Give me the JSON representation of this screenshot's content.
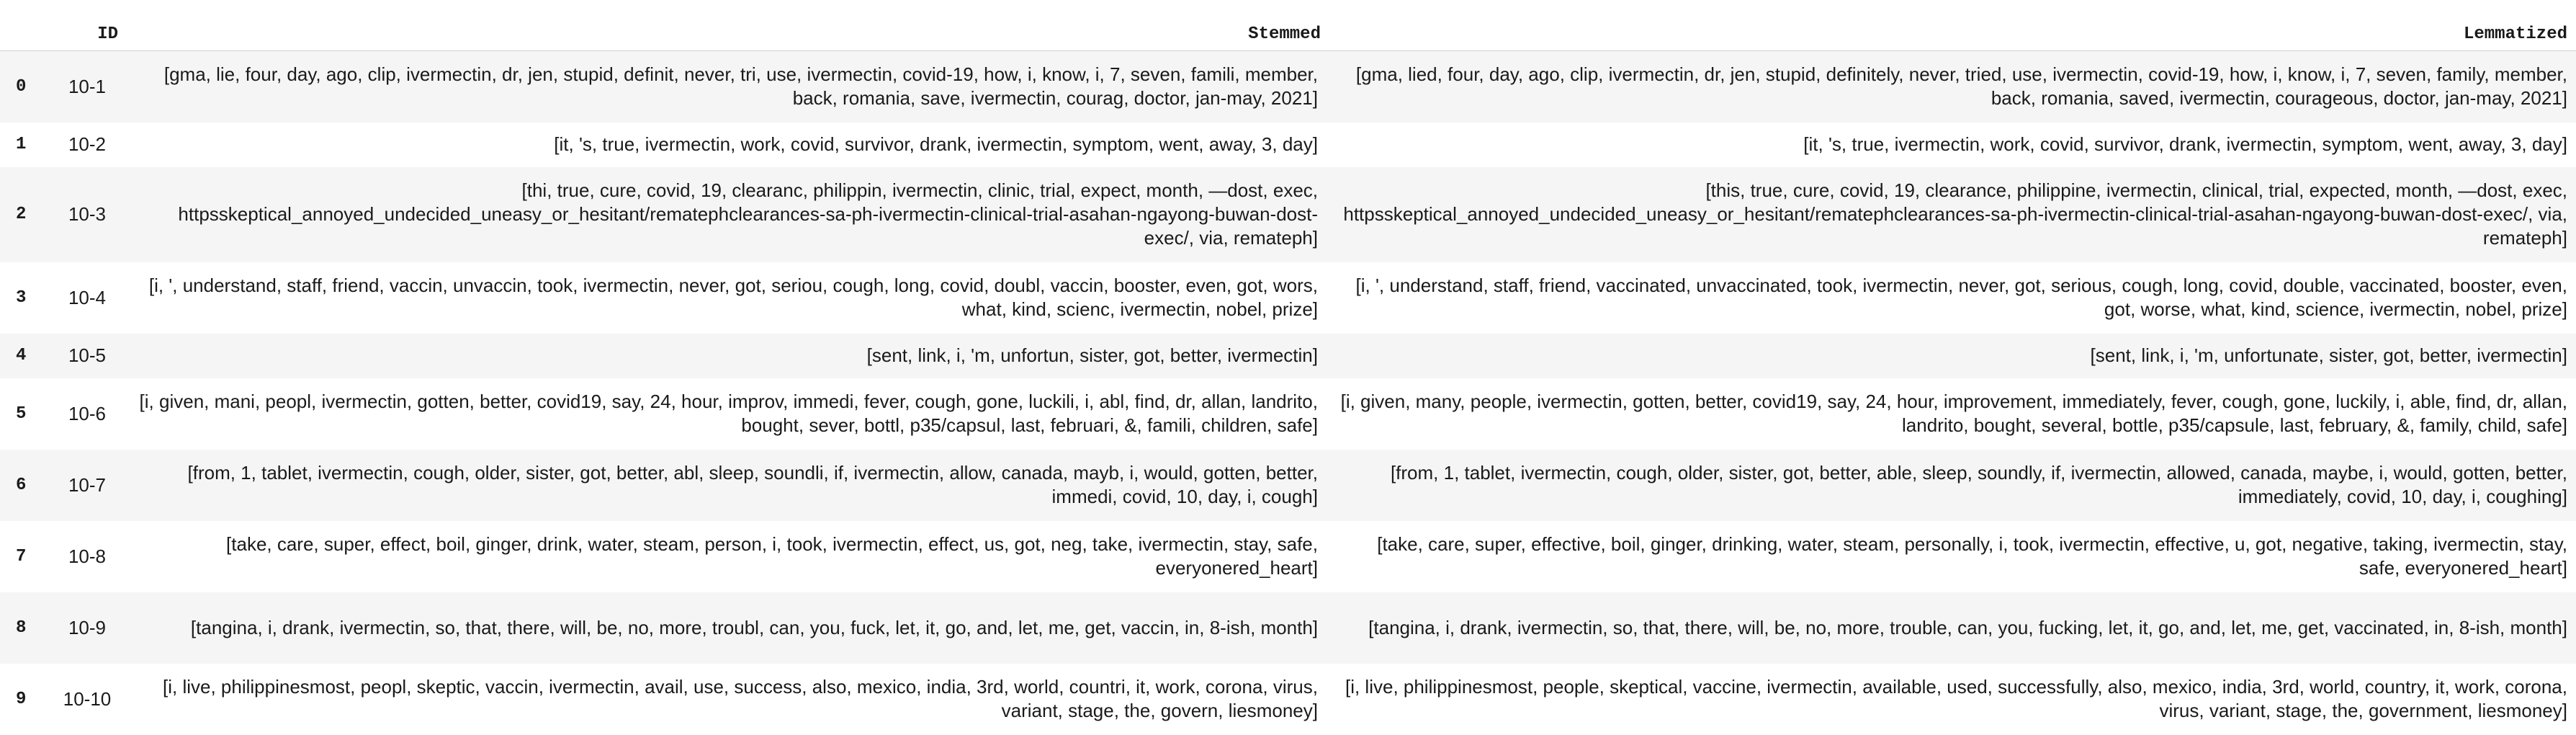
{
  "table": {
    "columns": {
      "index": "",
      "id": "ID",
      "stemmed": "Stemmed",
      "lemmatized": "Lemmatized"
    },
    "rows": [
      {
        "index": "0",
        "id": "10-1",
        "stemmed": "[gma, lie, four, day, ago, clip, ivermectin, dr, jen, stupid, definit, never, tri, use, ivermectin, covid-19, how, i, know, i, 7, seven, famili, member, back, romania, save, ivermectin, courag, doctor, jan-may, 2021]",
        "lemmatized": "[gma, lied, four, day, ago, clip, ivermectin, dr, jen, stupid, definitely, never, tried, use, ivermectin, covid-19, how, i, know, i, 7, seven, family, member, back, romania, saved, ivermectin, courageous, doctor, jan-may, 2021]"
      },
      {
        "index": "1",
        "id": "10-2",
        "stemmed": "[it, 's, true, ivermectin, work, covid, survivor, drank, ivermectin, symptom, went, away, 3, day]",
        "lemmatized": "[it, 's, true, ivermectin, work, covid, survivor, drank, ivermectin, symptom, went, away, 3, day]"
      },
      {
        "index": "2",
        "id": "10-3",
        "stemmed": "[thi, true, cure, covid, 19, clearanc, philippin, ivermectin, clinic, trial, expect, month, —dost, exec, httpsskeptical_annoyed_undecided_uneasy_or_hesitant/rematephclearances-sa-ph-ivermectin-clinical-trial-asahan-ngayong-buwan-dost-exec/, via, remateph]",
        "lemmatized": "[this, true, cure, covid, 19, clearance, philippine, ivermectin, clinical, trial, expected, month, —dost, exec, httpsskeptical_annoyed_undecided_uneasy_or_hesitant/rematephclearances-sa-ph-ivermectin-clinical-trial-asahan-ngayong-buwan-dost-exec/, via, remateph]"
      },
      {
        "index": "3",
        "id": "10-4",
        "stemmed": "[i, ', understand, staff, friend, vaccin, unvaccin, took, ivermectin, never, got, seriou, cough, long, covid, doubl, vaccin, booster, even, got, wors, what, kind, scienc, ivermectin, nobel, prize]",
        "lemmatized": "[i, ', understand, staff, friend, vaccinated, unvaccinated, took, ivermectin, never, got, serious, cough, long, covid, double, vaccinated, booster, even, got, worse, what, kind, science, ivermectin, nobel, prize]"
      },
      {
        "index": "4",
        "id": "10-5",
        "stemmed": "[sent, link, i, 'm, unfortun, sister, got, better, ivermectin]",
        "lemmatized": "[sent, link, i, 'm, unfortunate, sister, got, better, ivermectin]"
      },
      {
        "index": "5",
        "id": "10-6",
        "stemmed": "[i, given, mani, peopl, ivermectin, gotten, better, covid19, say, 24, hour, improv, immedi, fever, cough, gone, luckili, i, abl, find, dr, allan, landrito, bought, sever, bottl, p35/capsul, last, februari, &, famili, children, safe]",
        "lemmatized": "[i, given, many, people, ivermectin, gotten, better, covid19, say, 24, hour, improvement, immediately, fever, cough, gone, luckily, i, able, find, dr, allan, landrito, bought, several, bottle, p35/capsule, last, february, &, family, child, safe]"
      },
      {
        "index": "6",
        "id": "10-7",
        "stemmed": "[from, 1, tablet, ivermectin, cough, older, sister, got, better, abl, sleep, soundli, if, ivermectin, allow, canada, mayb, i, would, gotten, better, immedi, covid, 10, day, i, cough]",
        "lemmatized": "[from, 1, tablet, ivermectin, cough, older, sister, got, better, able, sleep, soundly, if, ivermectin, allowed, canada, maybe, i, would, gotten, better, immediately, covid, 10, day, i, coughing]"
      },
      {
        "index": "7",
        "id": "10-8",
        "stemmed": "[take, care, super, effect, boil, ginger, drink, water, steam, person, i, took, ivermectin, effect, us, got, neg, take, ivermectin, stay, safe, everyonered_heart]",
        "lemmatized": "[take, care, super, effective, boil, ginger, drinking, water, steam, personally, i, took, ivermectin, effective, u, got, negative, taking, ivermectin, stay, safe, everyonered_heart]"
      },
      {
        "index": "8",
        "id": "10-9",
        "stemmed": "[tangina, i, drank, ivermectin, so, that, there, will, be, no, more, troubl, can, you, fuck, let, it, go, and, let, me, get, vaccin, in, 8-ish, month]",
        "lemmatized": "[tangina, i, drank, ivermectin, so, that, there, will, be, no, more, trouble, can, you, fucking, let, it, go, and, let, me, get, vaccinated, in, 8-ish, month]"
      },
      {
        "index": "9",
        "id": "10-10",
        "stemmed": "[i, live, philippinesmost, peopl, skeptic, vaccin, ivermectin, avail, use, success, also, mexico, india, 3rd, world, countri, it, work, corona, virus, variant, stage, the, govern, liesmoney]",
        "lemmatized": "[i, live, philippinesmost, people, skeptical, vaccine, ivermectin, available, used, successfully, also, mexico, india, 3rd, world, country, it, work, corona, virus, variant, stage, the, government, liesmoney]"
      }
    ]
  }
}
